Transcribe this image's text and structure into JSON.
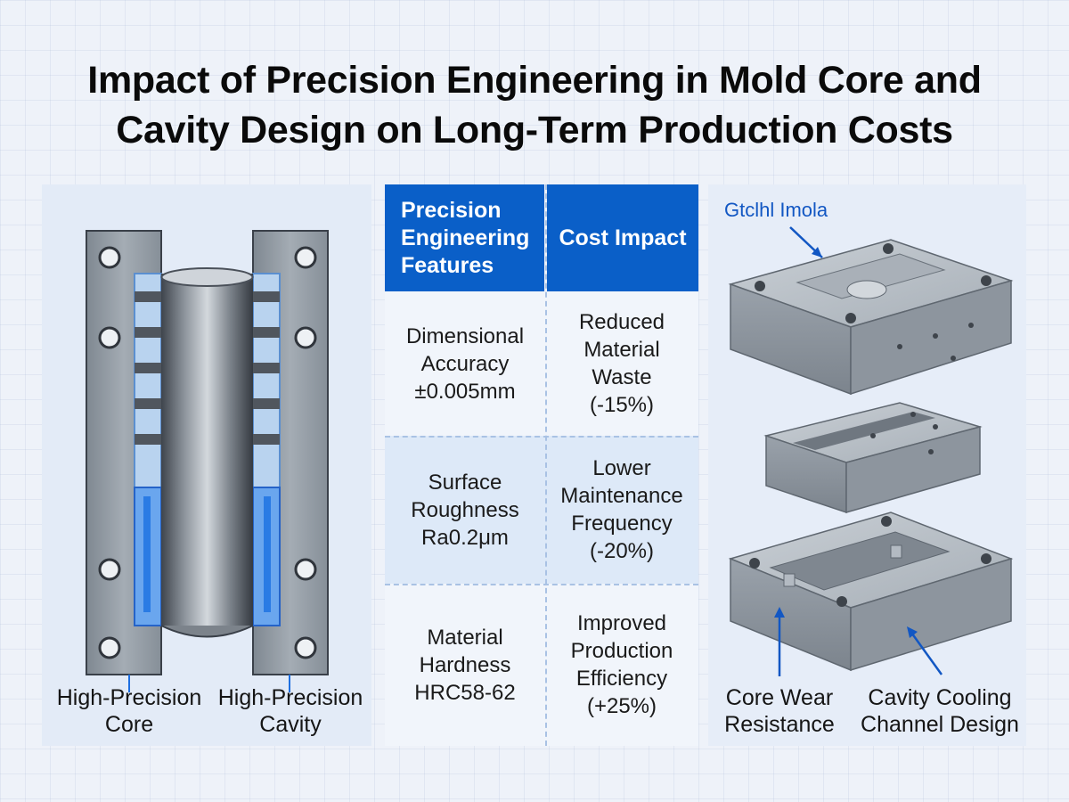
{
  "title": {
    "line1": "Impact of Precision Engineering in Mold Core and",
    "line2": "Cavity Design on Long-Term Production Costs"
  },
  "left_panel": {
    "core_caption_1": "High-Precision",
    "core_caption_2": "Core",
    "cavity_caption_1": "High-Precision",
    "cavity_caption_2": "Cavity"
  },
  "table": {
    "header_features_1": "Precision",
    "header_features_2": "Engineering",
    "header_features_3": "Features",
    "header_impact": "Cost Impact",
    "rows": [
      {
        "feature": [
          "Dimensional",
          "Accuracy",
          "±0.005mm"
        ],
        "impact": [
          "Reduced",
          "Material",
          "Waste",
          "(-15%)"
        ]
      },
      {
        "feature": [
          "Surface",
          "Roughness",
          "Ra0.2μm"
        ],
        "impact": [
          "Lower",
          "Maintenance",
          "Frequency",
          "(-20%)"
        ]
      },
      {
        "feature": [
          "Material",
          "Hardness",
          "HRC58-62"
        ],
        "impact": [
          "Improved",
          "Production",
          "Efficiency",
          "(+25%)"
        ]
      }
    ]
  },
  "right_panel": {
    "top_label": "Gtclhl Imola",
    "core_wear_1": "Core Wear",
    "core_wear_2": "Resistance",
    "cooling_1": "Cavity Cooling",
    "cooling_2": "Channel Design"
  },
  "colors": {
    "header_blue": "#0a5fc8",
    "accent_blue": "#1e6fe0",
    "steel": "#9aa3ad",
    "panel_bg": "#e3ebf7"
  }
}
